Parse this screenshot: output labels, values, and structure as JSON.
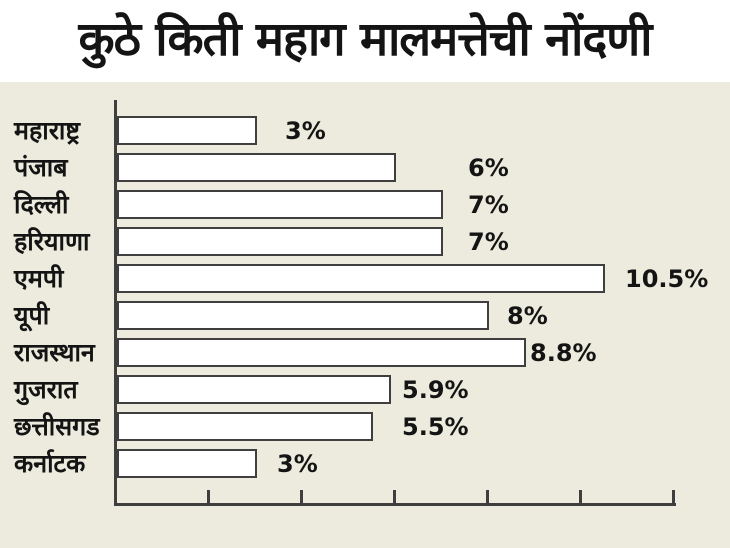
{
  "title": "कुठे किती महाग मालमत्तेची नोंदणी",
  "chart_data": {
    "type": "bar",
    "orientation": "horizontal",
    "title": "कुठे किती महाग मालमत्तेची नोंदणी",
    "categories": [
      "महाराष्ट्र",
      "पंजाब",
      "दिल्ली",
      "हरियाणा",
      "एमपी",
      "यूपी",
      "राजस्थान",
      "गुजरात",
      "छत्तीसगड",
      "कर्नाटक"
    ],
    "values": [
      3,
      6,
      7,
      7,
      10.5,
      8,
      8.8,
      5.9,
      5.5,
      3
    ],
    "value_labels": [
      "3%",
      "6%",
      "7%",
      "7%",
      "10.5%",
      "8%",
      "8.8%",
      "5.9%",
      "5.5%",
      "3%"
    ],
    "xlabel": "",
    "ylabel": "",
    "xlim": [
      0,
      12
    ],
    "xticks": [
      2,
      4,
      6,
      8,
      10,
      12
    ],
    "xtick_labels_visible": false,
    "grid": false,
    "legend": false,
    "colors": {
      "bar_fill": "#ffffff",
      "bar_border": "#3f3f3f",
      "axis": "#3f3f3f",
      "panel_background": "#ECEBDD",
      "page_background": "#ffffff",
      "text": "#141414"
    }
  }
}
